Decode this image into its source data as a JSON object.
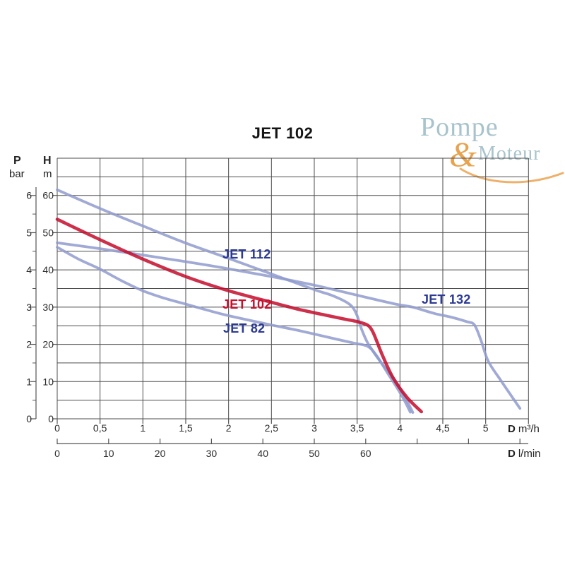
{
  "title": "JET 102",
  "logo": {
    "word1": "Pompe",
    "amp": "&",
    "word2": "Moteur"
  },
  "colors": {
    "curve_blue": "#8f9bce",
    "curve_red": "#c40c2c",
    "label_blue": "#2c3a94",
    "label_red": "#c8102e",
    "grid": "#4d4d4d",
    "axis_text": "#2b2b2b",
    "logo_blue": "#a7c3cb",
    "logo_orange": "#e8a34f"
  },
  "axes": {
    "pressure": {
      "label": "P",
      "unit": "bar",
      "ticks": [
        "6",
        "5",
        "4",
        "3",
        "2",
        "1",
        "0"
      ]
    },
    "head": {
      "label": "H",
      "unit": "m",
      "ticks": [
        "60",
        "50",
        "40",
        "30",
        "20",
        "10",
        "0"
      ]
    },
    "flow_m3h": {
      "label": "D",
      "unit": "m³/h",
      "ticks": [
        "0",
        "0,5",
        "1",
        "1,5",
        "2",
        "2,5",
        "3",
        "3,5",
        "4",
        "4,5",
        "5"
      ]
    },
    "flow_lmin": {
      "label": "D",
      "unit": "l/min",
      "ticks": [
        "0",
        "10",
        "20",
        "30",
        "40",
        "50",
        "60"
      ]
    }
  },
  "chart_data": {
    "type": "line",
    "title": "JET 102",
    "xlabel": "D m³/h (secondary scale: D l/min)",
    "ylabel": "H m (secondary scale: P bar)",
    "x_range_m3h": [
      0,
      5.5
    ],
    "x_gridline_step_m3h": 0.5,
    "x_secondary_lmin_tick_step": 10,
    "y_range_m": [
      0,
      70
    ],
    "y_gridline_step_m": 5,
    "y_secondary_bar_range": [
      0,
      6
    ],
    "grid": "on",
    "legend": "inline curve labels",
    "series": [
      {
        "name": "JET 112",
        "color": "#8f9bce",
        "points": [
          [
            0,
            61.5
          ],
          [
            0.5,
            56.5
          ],
          [
            1,
            51.8
          ],
          [
            1.5,
            47.2
          ],
          [
            2,
            43.1
          ],
          [
            2.5,
            38.9
          ],
          [
            3,
            34.7
          ],
          [
            3.2,
            33.2
          ],
          [
            3.37,
            31.4
          ],
          [
            3.45,
            29.9
          ],
          [
            3.5,
            27.7
          ],
          [
            3.55,
            24.2
          ],
          [
            3.63,
            20.1
          ],
          [
            3.78,
            15.1
          ],
          [
            3.95,
            10.1
          ],
          [
            4.07,
            5.3
          ],
          [
            4.15,
            1.7
          ]
        ]
      },
      {
        "name": "JET 82",
        "color": "#8f9bce",
        "points": [
          [
            0,
            46.1
          ],
          [
            0.25,
            42.9
          ],
          [
            0.5,
            40.2
          ],
          [
            0.75,
            37.1
          ],
          [
            1,
            34.4
          ],
          [
            1.25,
            32.4
          ],
          [
            1.5,
            30.8
          ],
          [
            1.75,
            29.2
          ],
          [
            2,
            27.7
          ],
          [
            2.5,
            25.2
          ],
          [
            2.8,
            23.8
          ],
          [
            3.2,
            21.7
          ],
          [
            3.45,
            20.4
          ],
          [
            3.62,
            19.5
          ],
          [
            3.72,
            17.2
          ],
          [
            3.85,
            12.5
          ],
          [
            4.02,
            6.3
          ],
          [
            4.12,
            1.8
          ]
        ]
      },
      {
        "name": "JET 132",
        "color": "#8f9bce",
        "points": [
          [
            0,
            47.3
          ],
          [
            0.5,
            45.7
          ],
          [
            1,
            44.0
          ],
          [
            1.5,
            42.2
          ],
          [
            2,
            40.3
          ],
          [
            2.5,
            38.2
          ],
          [
            3,
            35.9
          ],
          [
            3.5,
            33.2
          ],
          [
            3.95,
            30.8
          ],
          [
            4.15,
            30.0
          ],
          [
            4.4,
            28.3
          ],
          [
            4.6,
            27.3
          ],
          [
            4.78,
            26.1
          ],
          [
            4.87,
            25.2
          ],
          [
            4.95,
            20.8
          ],
          [
            5.03,
            15.5
          ],
          [
            5.18,
            10.2
          ],
          [
            5.4,
            2.8
          ]
        ]
      },
      {
        "name": "JET 102",
        "color": "#c40c2c",
        "points": [
          [
            0,
            53.6
          ],
          [
            0.5,
            48.1
          ],
          [
            1,
            42.9
          ],
          [
            1.5,
            38.2
          ],
          [
            2,
            34.4
          ],
          [
            2.5,
            31.3
          ],
          [
            2.8,
            29.5
          ],
          [
            3.1,
            28.0
          ],
          [
            3.35,
            26.8
          ],
          [
            3.5,
            26.1
          ],
          [
            3.62,
            25.2
          ],
          [
            3.68,
            23.5
          ],
          [
            3.73,
            20.8
          ],
          [
            3.8,
            16.8
          ],
          [
            3.92,
            11.0
          ],
          [
            4.08,
            5.8
          ],
          [
            4.25,
            1.9
          ]
        ]
      }
    ]
  }
}
